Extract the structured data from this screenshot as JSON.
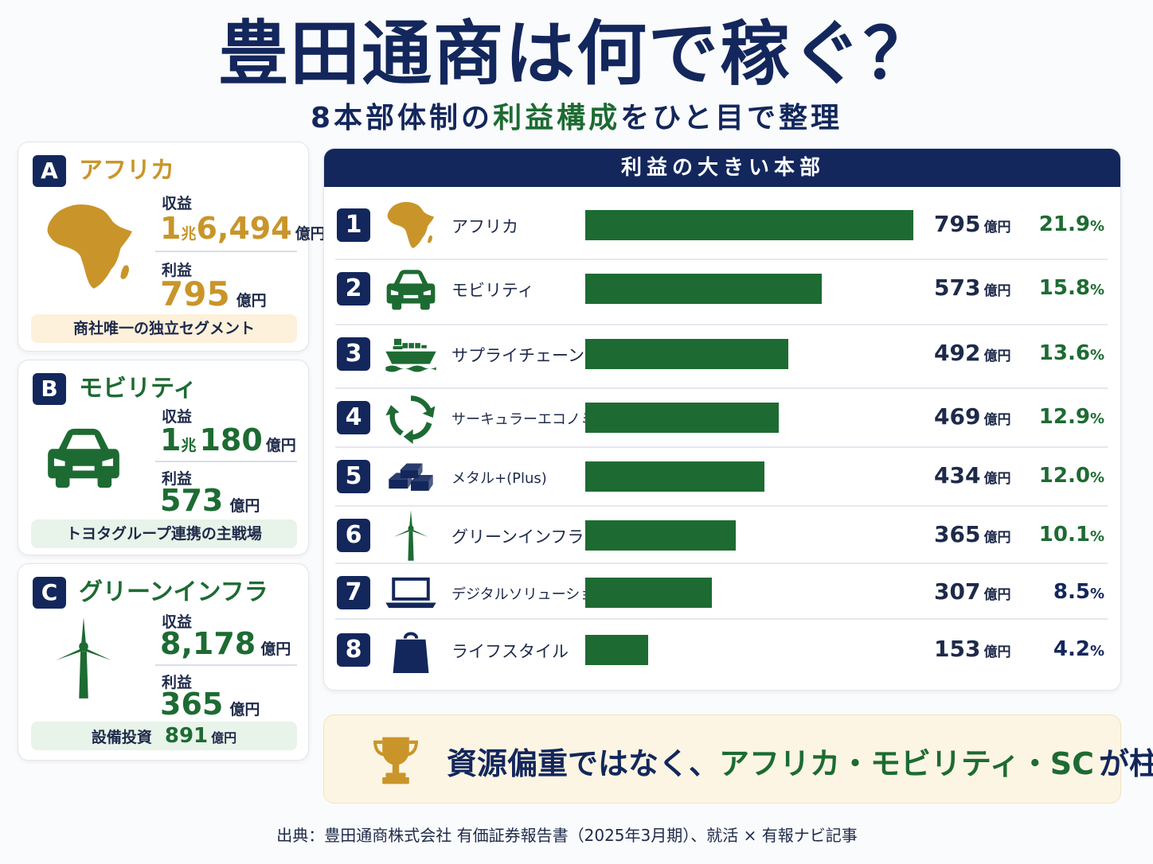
{
  "title": "豊田通商は何で稼ぐ？",
  "subtitle": {
    "part1": "8本部体制の",
    "highlight": "利益構成",
    "part2": "をひと目で整理"
  },
  "cards": [
    {
      "badge": "A",
      "name": "アフリカ",
      "name_color": "#c9952a",
      "icon": "africa-map-icon",
      "revenue_label": "収益",
      "revenue_main": "1",
      "revenue_mid": "兆",
      "revenue_rest": "6,494",
      "revenue_unit": "億円",
      "profit_label": "利益",
      "profit_value": "795",
      "profit_unit": "億円",
      "value_color": "#c9952a",
      "note": "商社唯一の独立セグメント"
    },
    {
      "badge": "B",
      "name": "モビリティ",
      "name_color": "#1d6b32",
      "icon": "car-icon",
      "revenue_label": "収益",
      "revenue_main": "1",
      "revenue_mid": "兆",
      "revenue_rest": "180",
      "revenue_unit": "億円",
      "profit_label": "利益",
      "profit_value": "573",
      "profit_unit": "億円",
      "value_color": "#1d6b32",
      "note": "トヨタグループ連携の主戦場"
    },
    {
      "badge": "C",
      "name": "グリーンインフラ",
      "name_color": "#1d6b32",
      "icon": "wind-turbine-icon",
      "revenue_label": "収益",
      "revenue_value": "8,178",
      "revenue_unit": "億円",
      "profit_label": "利益",
      "profit_value": "365",
      "profit_unit": "億円",
      "value_color": "#1d6b32",
      "note_label": "設備投資",
      "note_value": "891",
      "note_unit": "億円"
    }
  ],
  "ranking_header": "利益の大きい本部",
  "unit": "億円",
  "pct_unit": "%",
  "chart_data": {
    "type": "bar",
    "orientation": "horizontal",
    "categories": [
      "アフリカ",
      "モビリティ",
      "サプライチェーン",
      "サーキュラーエコノミー",
      "メタル+(Plus)",
      "グリーンインフラ",
      "デジタルソリューション",
      "ライフスタイル"
    ],
    "values": [
      795,
      573,
      492,
      469,
      434,
      365,
      307,
      153
    ],
    "share_labels": [
      "21.9",
      "15.8",
      "13.6",
      "12.9",
      "12.0",
      "10.1",
      "8.5",
      "4.2"
    ],
    "ranks": [
      "1",
      "2",
      "3",
      "4",
      "5",
      "6",
      "7",
      "8"
    ],
    "icons": [
      "africa-map-icon",
      "car-icon",
      "cargo-ship-icon",
      "recycle-icon",
      "metal-ingots-icon",
      "wind-turbine-icon",
      "laptop-icon",
      "shopping-bag-icon"
    ],
    "value_unit": "億円",
    "bar_color": "#1d6b32",
    "share_colors": [
      "#1d6b32",
      "#1d6b32",
      "#1d6b32",
      "#1d6b32",
      "#1d6b32",
      "#1d6b32",
      "#13275c",
      "#13275c"
    ]
  },
  "conclusion": {
    "part1": "資源偏重ではなく、",
    "highlight": "アフリカ・モビリティ・SC",
    "part2": "が柱",
    "icon": "trophy-icon"
  },
  "source": "出典：豊田通商株式会社 有価証券報告書（2025年3月期）、就活 × 有報ナビ記事",
  "colors": {
    "navy": "#13275c",
    "green": "#1d6b32",
    "gold": "#c9952a"
  }
}
